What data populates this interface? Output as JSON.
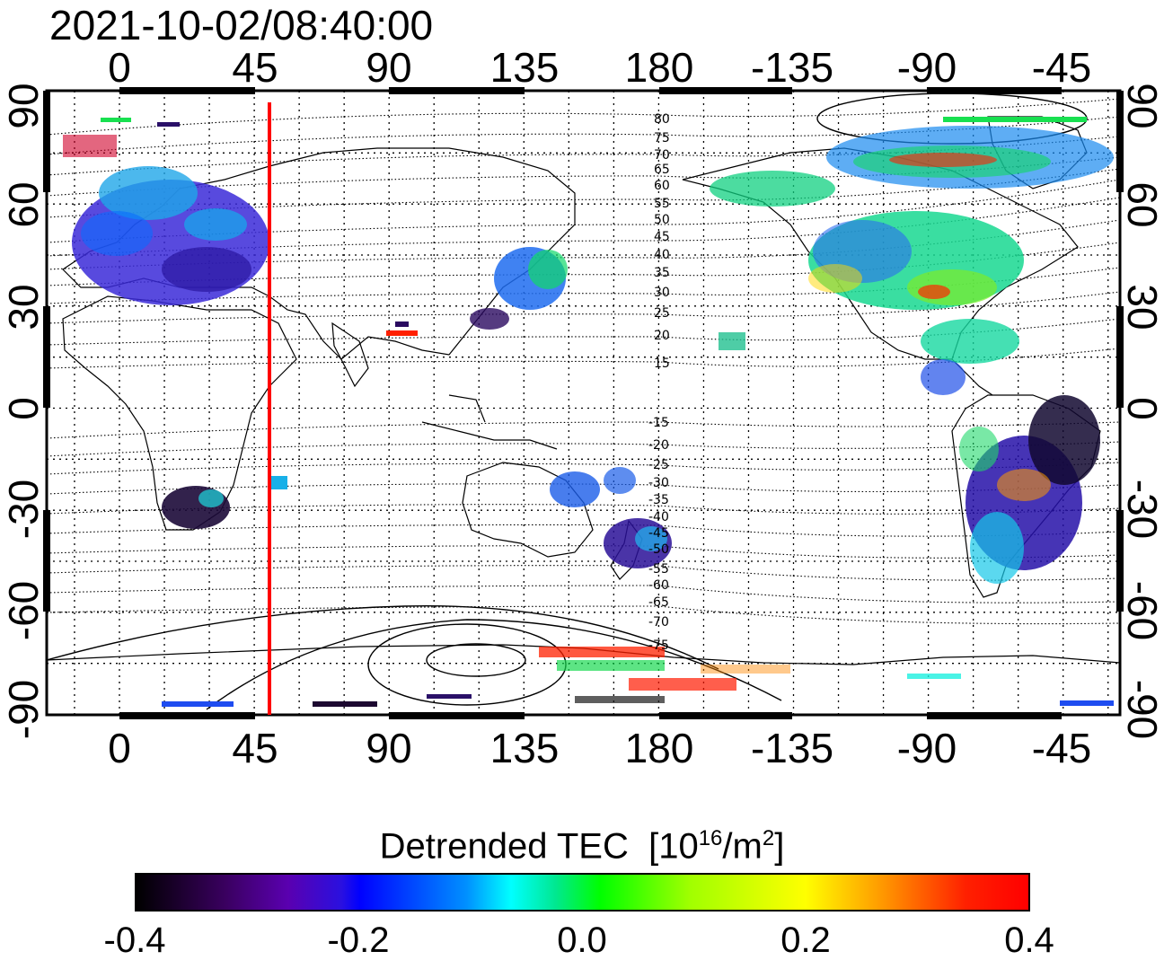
{
  "timestamp": "2021-10-02/08:40:00",
  "lon_labels": [
    "0",
    "45",
    "90",
    "135",
    "180",
    "-135",
    "-90",
    "-45"
  ],
  "lat_labels": [
    "90",
    "60",
    "30",
    "0",
    "-30",
    "-60",
    "-90"
  ],
  "contour_labels_north": [
    "80",
    "75",
    "70",
    "65",
    "60",
    "55",
    "50",
    "45",
    "40",
    "35",
    "30",
    "25",
    "20",
    "15"
  ],
  "contour_labels_south": [
    "-15",
    "-20",
    "-25",
    "-30",
    "-35",
    "-40",
    "-45",
    "-50",
    "-55",
    "-60",
    "-65",
    "-70",
    "-75"
  ],
  "colorbar": {
    "title": "Detrended TEC",
    "unit_open": "[10",
    "unit_exp": "16",
    "unit_mid": "/m",
    "unit_exp2": "2",
    "unit_close": "]",
    "ticks": [
      "-0.4",
      "-0.2",
      "0.0",
      "0.2",
      "0.4"
    ],
    "min": -0.4,
    "max": 0.4
  },
  "colors": {
    "marker_line": "#ff0000",
    "colormap": [
      "#000000",
      "#5a00b0",
      "#0000ff",
      "#00ffff",
      "#00ff00",
      "#ffff00",
      "#ff0000"
    ]
  },
  "marker_lon": 52
}
